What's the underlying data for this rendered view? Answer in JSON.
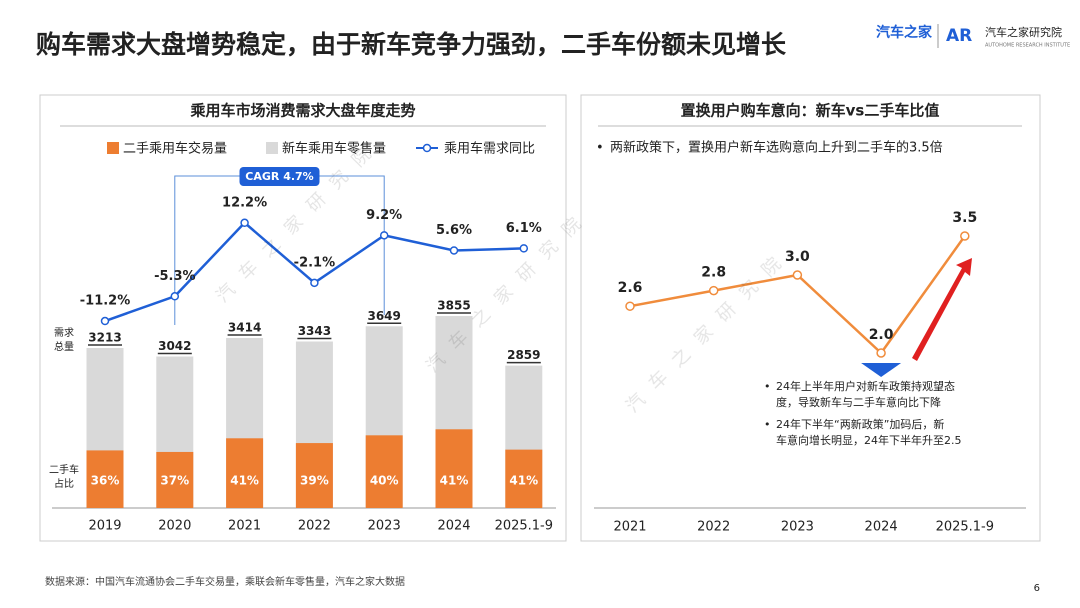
{
  "header": {
    "title": "购车需求大盘增势稳定，由于新车竞争力强劲，二手车份额未见增长",
    "logo_left": "汽车之家",
    "logo_right": "汽车之家研究院",
    "logo_right_sub": "AUTOHOME RESEARCH INSTITUTE"
  },
  "watermark": "汽车之家研究院",
  "chart_data": [
    {
      "type": "stacked-bar-line",
      "title": "乘用车市场消费需求大盘年度走势",
      "categories": [
        "2019",
        "2020",
        "2021",
        "2022",
        "2023",
        "2024",
        "2025.1-9"
      ],
      "series": [
        {
          "name": "二手乘用车交易量",
          "color": "#ed7d31",
          "label_lines": [
            "二手车",
            "占比"
          ],
          "values": [
            36,
            37,
            41,
            39,
            40,
            41,
            41
          ],
          "value_labels": [
            "36%",
            "37%",
            "41%",
            "39%",
            "40%",
            "41%",
            "41%"
          ]
        },
        {
          "name": "新车乘用车零售量",
          "color": "#d9d9d9",
          "label_lines": [
            "需求",
            "总量"
          ],
          "values": [
            3213,
            3042,
            3414,
            3343,
            3649,
            3855,
            2859
          ]
        },
        {
          "name": "乘用车需求同比",
          "color": "#1f5fd6",
          "axis": "y2",
          "values": [
            -11.2,
            -5.3,
            12.2,
            -2.1,
            9.2,
            5.6,
            6.1
          ],
          "value_labels": [
            "-11.2%",
            "-5.3%",
            "12.2%",
            "-2.1%",
            "9.2%",
            "5.6%",
            "6.1%"
          ]
        }
      ],
      "ylim": [
        0,
        4000
      ],
      "y2lim": [
        -15,
        20
      ],
      "annotation": "CAGR 4.7%"
    },
    {
      "type": "line",
      "title": "置换用户购车意向：新车vs二手车比值",
      "subtitle": "两新政策下，置换用户新车选购意向上升到二手车的3.5倍",
      "categories": [
        "2021",
        "2022",
        "2023",
        "2024",
        "2025.1-9"
      ],
      "values": [
        2.6,
        2.8,
        3.0,
        2.0,
        3.5
      ],
      "value_labels": [
        "2.6",
        "2.8",
        "3.0",
        "2.0",
        "3.5"
      ],
      "color": "#f08c3c",
      "ylim": [
        1.5,
        4
      ],
      "notes": [
        [
          "24年上半年用户对新车政策持观望态",
          "度，导致新车与二手车意向比下降"
        ],
        [
          "24年下半年“两新政策”加码后，新",
          "车意向增长明显，24年下半年升至2.5"
        ]
      ]
    }
  ],
  "footer": {
    "source": "数据来源：中国汽车流通协会二手车交易量，乘联会新车零售量，汽车之家大数据",
    "page": "6"
  }
}
